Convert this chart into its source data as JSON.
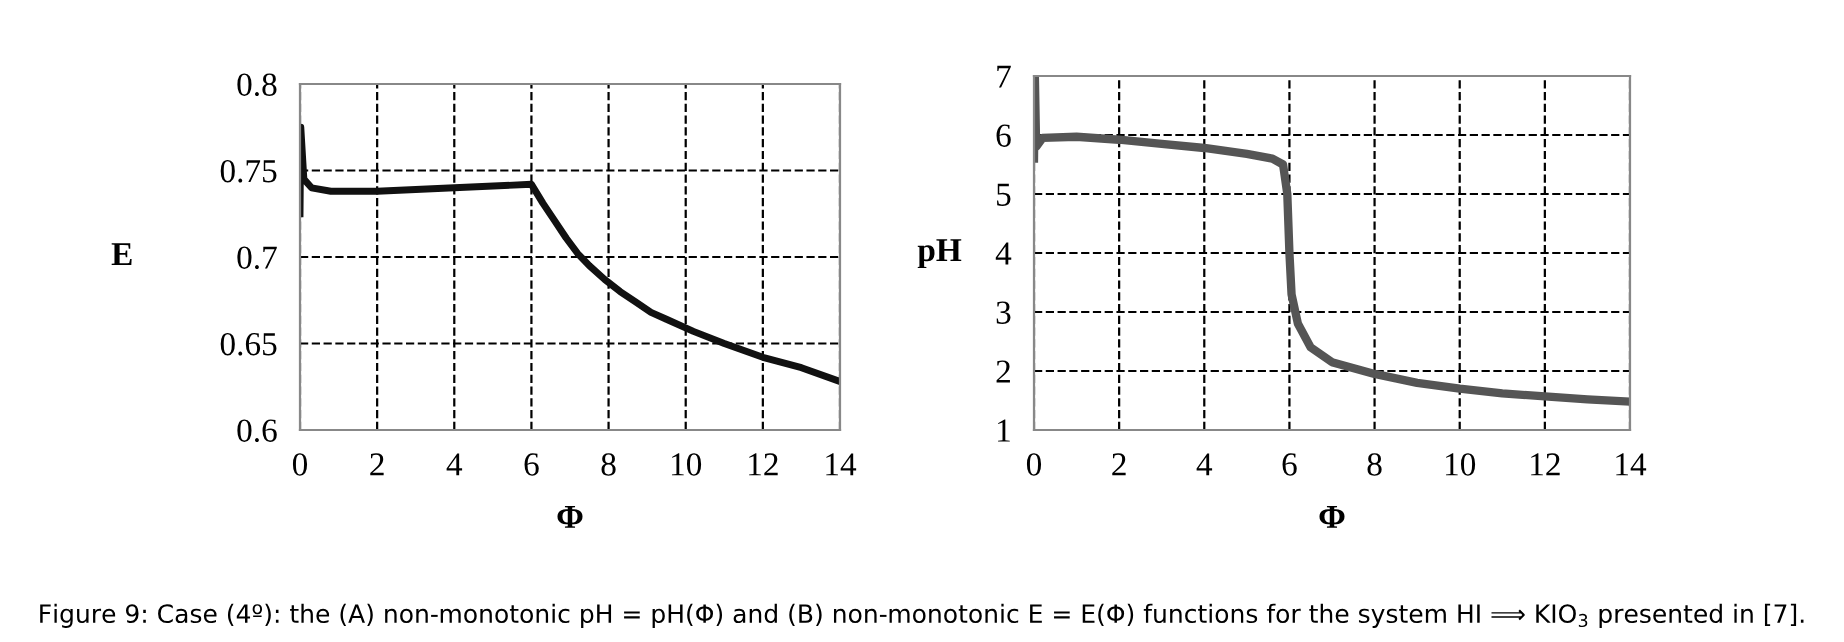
{
  "chart_data": [
    {
      "type": "line",
      "xlabel": "Φ",
      "ylabel": "E",
      "x": [
        0,
        0.02,
        0.1,
        0.3,
        0.8,
        2,
        4,
        6,
        6.3,
        6.6,
        6.9,
        7.2,
        7.5,
        7.9,
        8.3,
        8.7,
        9.1,
        9.5,
        10.2,
        11,
        12,
        13,
        14
      ],
      "series": [
        {
          "color": "#111111",
          "values": [
            0.725,
            0.775,
            0.745,
            0.74,
            0.738,
            0.738,
            0.74,
            0.742,
            0.731,
            0.721,
            0.711,
            0.702,
            0.695,
            0.687,
            0.68,
            0.674,
            0.668,
            0.664,
            0.657,
            0.65,
            0.642,
            0.636,
            0.628
          ]
        }
      ],
      "xlim": [
        0,
        14
      ],
      "xticks": [
        0,
        2,
        4,
        6,
        8,
        10,
        12,
        14
      ],
      "ylim": [
        0.6,
        0.8
      ],
      "yticks": [
        0.6,
        0.65,
        0.7,
        0.75,
        0.8
      ],
      "grid": true,
      "line_style": "solid",
      "annotations": [
        "Figure 9: Case (4º): the (A) non-monotonic pH = pH(Φ) and (B) non-monotonic E = E(Φ) functions for the system HI ⟹ KIO$_{3}$ presented in [7]."
      ]
    },
    {
      "type": "line",
      "xlabel": "Φ",
      "ylabel": "pH",
      "x": [
        0,
        0.02,
        0.05,
        0.2,
        1,
        2,
        3,
        4,
        5,
        5.6,
        5.85,
        5.95,
        6.0,
        6.05,
        6.2,
        6.5,
        7,
        8,
        9,
        10,
        11,
        12,
        13,
        14
      ],
      "series": [
        {
          "color": "#555555",
          "values": [
            5.6,
            7.0,
            5.8,
            5.95,
            5.97,
            5.92,
            5.85,
            5.78,
            5.68,
            5.6,
            5.5,
            5.0,
            4.0,
            3.3,
            2.8,
            2.4,
            2.15,
            1.95,
            1.8,
            1.7,
            1.62,
            1.57,
            1.52,
            1.48
          ]
        }
      ],
      "xlim": [
        0,
        14
      ],
      "xticks": [
        0,
        2,
        4,
        6,
        8,
        10,
        12,
        14
      ],
      "ylim": [
        1,
        7
      ],
      "yticks": [
        1,
        2,
        3,
        4,
        5,
        6,
        7
      ],
      "grid": true,
      "line_style": "solid"
    }
  ]
}
